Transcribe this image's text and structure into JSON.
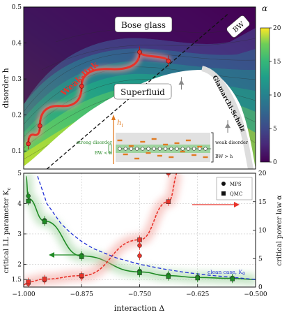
{
  "figure": {
    "top_panel": {
      "type": "heatmap",
      "ylabel": "disorder h",
      "y_ticks": [
        "0.1",
        "0.2",
        "0.3",
        "0.4",
        "0.5"
      ],
      "colorbar": {
        "label": "α",
        "ticks": [
          "0",
          "5",
          "10",
          "15",
          "20"
        ],
        "range": [
          0,
          20
        ]
      },
      "regions": {
        "bose_glass": "Bose glass",
        "superfluid": "Superfluid"
      },
      "lines": {
        "bw": "BW",
        "weak_link": "Weak-link",
        "giamarchi": "Giamarchi-Schulz"
      },
      "colors": {
        "weak_link": "#e8332a",
        "bw_line": "#111111",
        "giamarchi": "#dddddd"
      },
      "inset": {
        "hi_label": "h",
        "hi_sub": "i",
        "strong_disorder": "strong disorder",
        "strong_cond": "BW < h",
        "weak_disorder": "weak disorder",
        "weak_cond": "BW > h"
      }
    },
    "bottom_panel": {
      "xlabel": "interaction Δ",
      "ylabel_left": "critical LL parameter K",
      "ylabel_left_sub": "c",
      "ylabel_right": "critical power law α",
      "x_ticks": [
        "−1.000",
        "−0.875",
        "−0.750",
        "−0.625",
        "−0.500"
      ],
      "y_left_ticks": [
        "1.5",
        "2",
        "3",
        "4",
        "5"
      ],
      "y_right_ticks": [
        "0",
        "5",
        "10",
        "15",
        "20"
      ],
      "legend": {
        "mps": "MPS",
        "qmc": "QMC"
      },
      "clean_case": "clean case, K",
      "clean_case_sub": "0"
    }
  },
  "chart_data": [
    {
      "type": "heatmap",
      "xlim": [
        -1.0,
        -0.5
      ],
      "ylim": [
        0.05,
        0.5
      ],
      "zlim": [
        0,
        20
      ],
      "colormap": "viridis",
      "weak_link_points": [
        {
          "x": -0.99,
          "y": 0.12
        },
        {
          "x": -0.965,
          "y": 0.17
        },
        {
          "x": -0.875,
          "y": 0.28
        },
        {
          "x": -0.75,
          "y": 0.375
        },
        {
          "x": -0.688,
          "y": 0.35
        }
      ],
      "giamarchi_markers": [
        {
          "x": -0.66,
          "y": 0.29
        },
        {
          "x": -0.56,
          "y": 0.17
        }
      ],
      "bw_line": [
        {
          "x": -0.95,
          "y": 0.05
        },
        {
          "x": -0.56,
          "y": 0.48
        }
      ]
    },
    {
      "type": "scatter",
      "xlim": [
        -1.0,
        -0.5
      ],
      "ylim_left": [
        1.25,
        5.0
      ],
      "ylim_right": [
        0,
        20
      ],
      "series": [
        {
          "name": "Kc MPS",
          "axis": "left",
          "color": "#1f8a24",
          "marker": "circle",
          "x": [
            -0.99,
            -0.955,
            -0.875,
            -0.75,
            -0.688,
            -0.625,
            -0.55
          ],
          "y": [
            4.25,
            3.45,
            2.3,
            1.78,
            1.65,
            1.58,
            1.55
          ]
        },
        {
          "name": "Kc QMC",
          "axis": "left",
          "color": "#1f8a24",
          "marker": "square",
          "x": [
            -0.99,
            -0.955,
            -0.875,
            -0.75,
            -0.688,
            -0.625,
            -0.55
          ],
          "y": [
            4.08,
            3.4,
            2.25,
            1.72,
            1.6,
            1.55,
            1.52
          ]
        },
        {
          "name": "alpha MPS",
          "axis": "right",
          "color": "#e8332a",
          "marker": "circle",
          "x": [
            -0.99,
            -0.955,
            -0.875,
            -0.75,
            -0.75,
            -0.688
          ],
          "y": [
            0.6,
            1.2,
            1.8,
            5.5,
            7.3,
            20.0
          ]
        },
        {
          "name": "alpha QMC",
          "axis": "right",
          "color": "#e8332a",
          "marker": "square",
          "x": [
            -0.99,
            -0.955,
            -0.875,
            -0.75,
            -0.688
          ],
          "y": [
            0.9,
            1.4,
            2.0,
            8.3,
            15.0
          ]
        }
      ],
      "clean_case_K0": {
        "x": [
          -0.97,
          -0.95,
          -0.92,
          -0.9,
          -0.875,
          -0.85,
          -0.8,
          -0.75,
          -0.7,
          -0.65,
          -0.6,
          -0.55,
          -0.5
        ],
        "y": [
          4.9,
          4.0,
          3.35,
          3.05,
          2.75,
          2.52,
          2.21,
          2.0,
          1.85,
          1.73,
          1.64,
          1.57,
          1.5
        ]
      }
    }
  ]
}
